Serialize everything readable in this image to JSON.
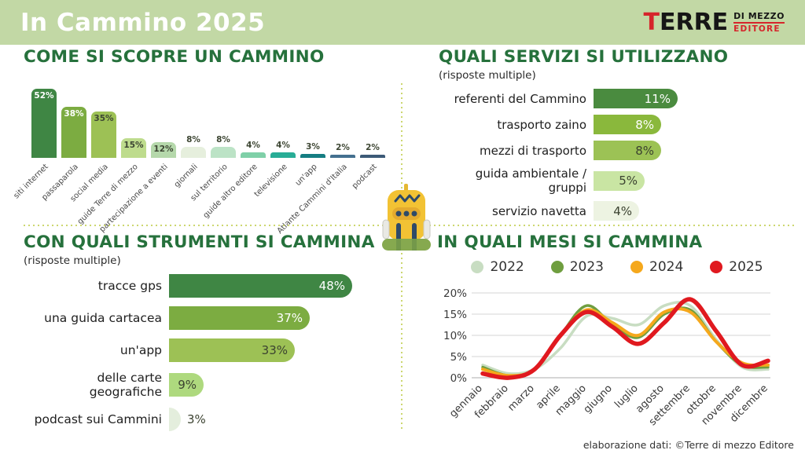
{
  "header": {
    "title": "In Cammino 2025",
    "logo": {
      "first_letter": "T",
      "rest": "ERRE",
      "top": "DI MEZZO",
      "bottom": "EDITORE"
    }
  },
  "footer": {
    "credit": "elaborazione dati: ©Terre di mezzo Editore"
  },
  "colors": {
    "band_green": "#c2d8a5",
    "heading_green": "#26713c",
    "logo_red": "#d6252b",
    "divider_dots": "#ccd76f"
  },
  "chart_data": [
    {
      "id": "come-si-scopre",
      "type": "bar",
      "title": "COME SI SCOPRE UN CAMMINO",
      "categories": [
        "siti internet",
        "passaparola",
        "social media",
        "guide Terre di mezzo",
        "partecipazione a eventi",
        "giornali",
        "sul territorio",
        "guide altro editore",
        "televisione",
        "un'app",
        "Atlante Cammini d'Italia",
        "podcast"
      ],
      "values": [
        52,
        38,
        35,
        15,
        12,
        8,
        8,
        4,
        4,
        3,
        2,
        2
      ],
      "bar_colors": [
        "#3f8644",
        "#7cac41",
        "#9dc155",
        "#bedc8d",
        "#b5d8ab",
        "#e6efdd",
        "#bce3c6",
        "#7fd0a8",
        "#28ad96",
        "#157d82",
        "#44708f",
        "#3c5a77"
      ],
      "light_text_bars": [
        0,
        1
      ],
      "value_suffix": "%",
      "ylim": [
        0,
        52
      ],
      "grid": false
    },
    {
      "id": "quali-servizi",
      "type": "bar-horizontal",
      "title": "QUALI SERVIZI SI UTILIZZANO",
      "subtitle": "(risposte multiple)",
      "categories": [
        "referenti del Cammino",
        "trasporto zaino",
        "mezzi di trasporto",
        "guida ambientale / gruppi",
        "servizio navetta"
      ],
      "values": [
        11,
        8,
        8,
        5,
        4
      ],
      "bar_colors": [
        "#4a8b3f",
        "#8ab83c",
        "#9cc255",
        "#c9e5a3",
        "#edf3e2"
      ],
      "light_text_bars": [
        0,
        1
      ],
      "value_suffix": "%"
    },
    {
      "id": "con-quali-strumenti",
      "type": "bar-horizontal",
      "title": "CON QUALI STRUMENTI SI CAMMINA",
      "subtitle": "(risposte multiple)",
      "categories": [
        "tracce gps",
        "una guida cartacea",
        "un'app",
        "delle carte geografiche",
        "podcast sui Cammini"
      ],
      "values": [
        48,
        37,
        33,
        9,
        3
      ],
      "bar_colors": [
        "#3f8644",
        "#7cac41",
        "#9dc155",
        "#aed97e",
        "#e4eedd"
      ],
      "light_text_bars": [
        0,
        1
      ],
      "value_suffix": "%"
    },
    {
      "id": "in-quali-mesi",
      "type": "line",
      "title": "IN QUALI MESI SI CAMMINA",
      "x": [
        "gennaio",
        "febbraio",
        "marzo",
        "aprile",
        "maggio",
        "giugno",
        "luglio",
        "agosto",
        "settembre",
        "ottobre",
        "novembre",
        "dicembre"
      ],
      "ylim": [
        0,
        20
      ],
      "ytick_labels": [
        "0%",
        "5%",
        "10%",
        "15%",
        "20%"
      ],
      "grid": true,
      "legend_position": "top",
      "series": [
        {
          "name": "2022",
          "color": "#c8ddc2",
          "values": [
            3,
            1,
            2,
            7,
            14.5,
            14,
            12.5,
            17,
            17,
            9,
            2.5,
            2
          ]
        },
        {
          "name": "2023",
          "color": "#6f9e3f",
          "values": [
            2.5,
            0.5,
            2,
            10,
            17,
            12.5,
            9.5,
            15,
            16,
            8.5,
            3,
            2.5
          ]
        },
        {
          "name": "2024",
          "color": "#f5a81c",
          "values": [
            2,
            0.5,
            2,
            10,
            16,
            13,
            10,
            15.5,
            15.5,
            8.5,
            3.5,
            3
          ]
        },
        {
          "name": "2025",
          "color": "#e0191f",
          "values": [
            1,
            0,
            2,
            10,
            15.5,
            12,
            8,
            13,
            18.5,
            11,
            3,
            4
          ]
        }
      ]
    }
  ]
}
